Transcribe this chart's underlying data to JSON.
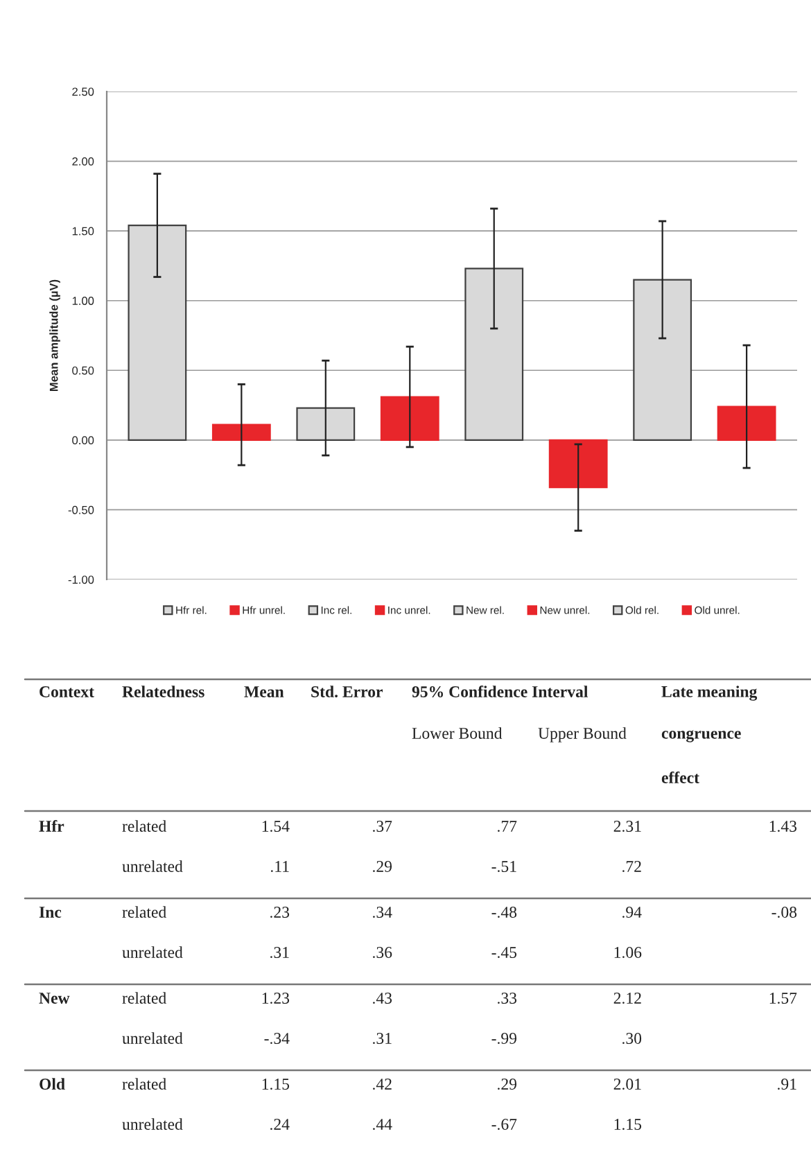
{
  "chart_data": {
    "type": "bar",
    "ylabel": "Mean amplitude (µV)",
    "categories": [
      null,
      null,
      null,
      null,
      null,
      null,
      null,
      null
    ],
    "series": [
      {
        "name": "Hfr rel.",
        "color": "#d9d9d9",
        "values": [
          1.54,
          null,
          null,
          null,
          null,
          null,
          null,
          null
        ],
        "errors": [
          0.37,
          null,
          null,
          null,
          null,
          null,
          null,
          null
        ]
      },
      {
        "name": "Hfr unrel.",
        "color": "#e8262b",
        "values": [
          null,
          0.11,
          null,
          null,
          null,
          null,
          null,
          null
        ],
        "errors": [
          null,
          0.29,
          null,
          null,
          null,
          null,
          null,
          null
        ]
      },
      {
        "name": "Inc rel.",
        "color": "#d9d9d9",
        "values": [
          null,
          null,
          0.23,
          null,
          null,
          null,
          null,
          null
        ],
        "errors": [
          null,
          null,
          0.34,
          null,
          null,
          null,
          null,
          null
        ]
      },
      {
        "name": "Inc unrel.",
        "color": "#e8262b",
        "values": [
          null,
          null,
          null,
          0.31,
          null,
          null,
          null,
          null
        ],
        "errors": [
          null,
          null,
          null,
          0.36,
          null,
          null,
          null,
          null
        ]
      },
      {
        "name": "New rel.",
        "color": "#d9d9d9",
        "values": [
          null,
          null,
          null,
          null,
          1.23,
          null,
          null,
          null
        ],
        "errors": [
          null,
          null,
          null,
          null,
          0.43,
          null,
          null,
          null
        ]
      },
      {
        "name": "New unrel.",
        "color": "#e8262b",
        "values": [
          null,
          null,
          null,
          null,
          null,
          -0.34,
          null,
          null
        ],
        "errors": [
          null,
          null,
          null,
          null,
          null,
          0.31,
          null,
          null
        ]
      },
      {
        "name": "Old rel.",
        "color": "#d9d9d9",
        "values": [
          null,
          null,
          null,
          null,
          null,
          null,
          1.15,
          null
        ],
        "errors": [
          null,
          null,
          null,
          null,
          null,
          null,
          0.42,
          null
        ]
      },
      {
        "name": "Old unrel.",
        "color": "#e8262b",
        "values": [
          null,
          null,
          null,
          null,
          null,
          null,
          null,
          0.24
        ],
        "errors": [
          null,
          null,
          null,
          null,
          null,
          null,
          null,
          0.44
        ]
      }
    ],
    "ylim": [
      -1.0,
      2.5
    ],
    "yticks": [
      {
        "value": -1.0,
        "label": "-1.00"
      },
      {
        "value": -0.5,
        "label": "-0.50"
      },
      {
        "value": 0.0,
        "label": "0.00"
      },
      {
        "value": 0.5,
        "label": "0.50"
      },
      {
        "value": 1.0,
        "label": "1.00"
      },
      {
        "value": 1.5,
        "label": "1.50"
      },
      {
        "value": 2.0,
        "label": "2.00"
      },
      {
        "value": 2.5,
        "label": "2.50"
      }
    ],
    "grid": "y",
    "legend": "bottom",
    "annotations": [
      "Context",
      "Relatedness",
      "Mean",
      "Std. Error",
      "95% Confidence Interval",
      "Lower Bound",
      "Upper Bound",
      "Late meaning",
      "congruence",
      "effect",
      "Hfr",
      "related",
      "1.54",
      ".37",
      ".77",
      "2.31",
      "1.43",
      "unrelated",
      ".11",
      ".29",
      "-.51",
      ".72",
      "Inc",
      "related",
      ".23",
      ".34",
      "-.48",
      ".94",
      "-.08",
      "unrelated",
      ".31",
      ".36",
      "-.45",
      "1.06",
      "New",
      "related",
      "1.23",
      ".43",
      ".33",
      "2.12",
      "1.57",
      "unrelated",
      "-.34",
      ".31",
      "-.99",
      ".30",
      "Old",
      "related",
      "1.15",
      ".42",
      ".29",
      "2.01",
      ".91",
      "unrelated",
      ".24",
      ".44",
      "-.67",
      "1.15"
    ]
  }
}
